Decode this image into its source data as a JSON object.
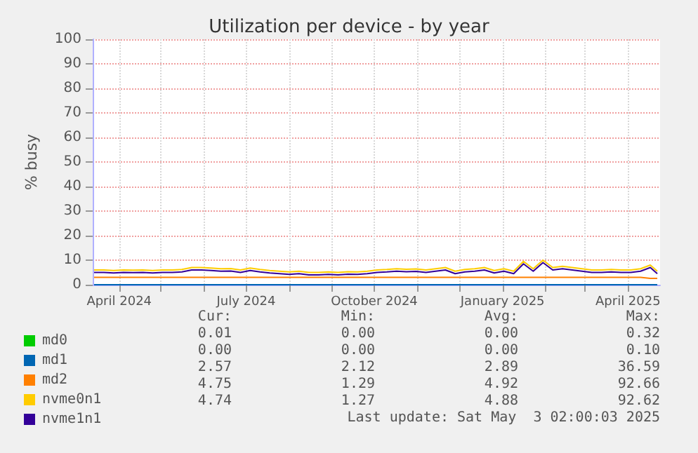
{
  "chart_data": {
    "type": "line",
    "title": "Utilization per device - by year",
    "ylabel": "% busy",
    "x": [
      "2024-03-14",
      "2024-03-21",
      "2024-03-28",
      "2024-04-04",
      "2024-04-11",
      "2024-04-18",
      "2024-04-25",
      "2024-05-02",
      "2024-05-09",
      "2024-05-16",
      "2024-05-23",
      "2024-05-30",
      "2024-06-06",
      "2024-06-13",
      "2024-06-20",
      "2024-06-27",
      "2024-07-04",
      "2024-07-11",
      "2024-07-18",
      "2024-07-25",
      "2024-08-01",
      "2024-08-08",
      "2024-08-15",
      "2024-08-22",
      "2024-08-29",
      "2024-09-05",
      "2024-09-12",
      "2024-09-19",
      "2024-09-26",
      "2024-10-03",
      "2024-10-10",
      "2024-10-17",
      "2024-10-24",
      "2024-10-31",
      "2024-11-07",
      "2024-11-14",
      "2024-11-21",
      "2024-11-28",
      "2024-12-05",
      "2024-12-12",
      "2024-12-19",
      "2024-12-26",
      "2025-01-02",
      "2025-01-09",
      "2025-01-16",
      "2025-01-23",
      "2025-01-30",
      "2025-02-06",
      "2025-02-13",
      "2025-02-20",
      "2025-02-27",
      "2025-03-06",
      "2025-03-13",
      "2025-03-20",
      "2025-03-27",
      "2025-04-03",
      "2025-04-10",
      "2025-04-17",
      "2025-04-22"
    ],
    "series": [
      {
        "name": "md0",
        "color": "#00cc00",
        "values": [
          null,
          null,
          null,
          null,
          null,
          null,
          null,
          null,
          null,
          null,
          null,
          null,
          null,
          null,
          null,
          null,
          null,
          null,
          null,
          null,
          null,
          null,
          null,
          null,
          null,
          null,
          null,
          null,
          null,
          null,
          null,
          null,
          null,
          null,
          null,
          null,
          null,
          null,
          null,
          null,
          null,
          null,
          null,
          null,
          null,
          null,
          null,
          null,
          null,
          null,
          null,
          null,
          null,
          null,
          null,
          null,
          null,
          null,
          null
        ]
      },
      {
        "name": "md1",
        "color": "#0066b3",
        "values": [
          0,
          0,
          0,
          0,
          0,
          0,
          0,
          0,
          0,
          0,
          0,
          0,
          0,
          0,
          0,
          0,
          0,
          0,
          0,
          0,
          0,
          0,
          0,
          0,
          0,
          0,
          0,
          0,
          0,
          0,
          0,
          0,
          0,
          0,
          0,
          0,
          0,
          0,
          0,
          0,
          0,
          0,
          0,
          0,
          0,
          0,
          0,
          0,
          0,
          0,
          0,
          0,
          0,
          0,
          0,
          0,
          0,
          0,
          0
        ]
      },
      {
        "name": "md2",
        "color": "#ff8000",
        "values": [
          3,
          3,
          3,
          3,
          3,
          3,
          3,
          3,
          3,
          3,
          3,
          3,
          3,
          3,
          3,
          3,
          3,
          3,
          3,
          3,
          3,
          3,
          3,
          3,
          3,
          3,
          3,
          3,
          3,
          3,
          3,
          3,
          3,
          3,
          3,
          3,
          3,
          3,
          3,
          3,
          3,
          3,
          3,
          3,
          3,
          3,
          3,
          3,
          3,
          3,
          3,
          3,
          3,
          3,
          3,
          3,
          3,
          2.6,
          2.6
        ]
      },
      {
        "name": "nvme0n1",
        "color": "#ffcc00",
        "values": [
          6,
          6,
          5.8,
          6,
          5.9,
          6,
          5.8,
          6,
          6,
          6.2,
          7,
          7,
          6.8,
          6.5,
          6.6,
          6,
          6.8,
          6.2,
          5.8,
          5.5,
          5.2,
          5.5,
          5,
          5,
          5.2,
          5,
          5.3,
          5.2,
          5.5,
          6,
          6.2,
          6.5,
          6.3,
          6.4,
          6,
          6.5,
          7,
          5.5,
          6.2,
          6.5,
          7,
          5.8,
          6.5,
          5.5,
          9.5,
          6.5,
          10,
          7,
          7.5,
          7,
          6.5,
          6,
          6,
          6.2,
          6,
          6,
          6.5,
          8,
          5.5
        ]
      },
      {
        "name": "nvme1n1",
        "color": "#330099",
        "values": [
          5,
          5,
          4.8,
          5,
          4.9,
          5,
          4.8,
          5,
          5,
          5.2,
          6,
          6,
          5.8,
          5.5,
          5.6,
          5,
          5.8,
          5.2,
          4.8,
          4.5,
          4.2,
          4.5,
          4,
          4,
          4.2,
          4,
          4.3,
          4.2,
          4.5,
          5,
          5.2,
          5.5,
          5.3,
          5.4,
          5,
          5.5,
          6,
          4.5,
          5.2,
          5.5,
          6,
          4.8,
          5.5,
          4.5,
          8.5,
          5.5,
          9,
          6,
          6.5,
          6,
          5.5,
          5,
          5,
          5.2,
          5,
          5,
          5.5,
          7,
          4.5
        ]
      }
    ],
    "xlim": [
      "2024-03-13",
      "2025-04-24"
    ],
    "xticks": [
      {
        "value": "2024-04-01",
        "label": "April 2024"
      },
      {
        "value": "2024-05-01",
        "label": null
      },
      {
        "value": "2024-06-01",
        "label": null
      },
      {
        "value": "2024-07-01",
        "label": "July 2024"
      },
      {
        "value": "2024-08-01",
        "label": null
      },
      {
        "value": "2024-09-01",
        "label": null
      },
      {
        "value": "2024-10-01",
        "label": "October 2024"
      },
      {
        "value": "2024-11-01",
        "label": null
      },
      {
        "value": "2024-12-01",
        "label": null
      },
      {
        "value": "2025-01-01",
        "label": "January 2025"
      },
      {
        "value": "2025-02-01",
        "label": null
      },
      {
        "value": "2025-03-01",
        "label": null
      },
      {
        "value": "2025-04-01",
        "label": "April 2025"
      }
    ],
    "ylim": [
      0,
      100
    ],
    "yticks": [
      0,
      10,
      20,
      30,
      40,
      50,
      60,
      70,
      80,
      90,
      100
    ],
    "grid": true,
    "legend": "bottom",
    "marker": "none",
    "line_style": "solid",
    "annotations": [
      "Cur:",
      "Min:",
      "Avg:",
      "Max:",
      "0.01",
      "0.00",
      "0.00",
      "0.32",
      "0.00",
      "0.00",
      "0.00",
      "0.10",
      "2.57",
      "2.12",
      "2.89",
      "36.59",
      "4.75",
      "1.29",
      "4.92",
      "92.66",
      "4.74",
      "1.27",
      "4.88",
      "92.62",
      "Last update: Sat May  3 02:00:03 2025"
    ]
  }
}
